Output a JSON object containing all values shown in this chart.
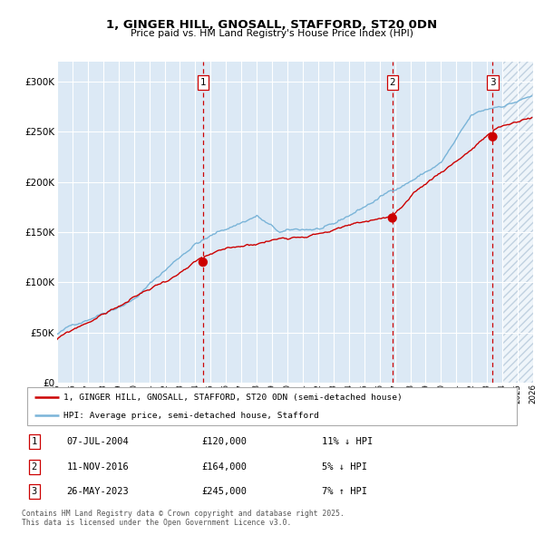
{
  "title": "1, GINGER HILL, GNOSALL, STAFFORD, ST20 0DN",
  "subtitle": "Price paid vs. HM Land Registry's House Price Index (HPI)",
  "legend_line1": "1, GINGER HILL, GNOSALL, STAFFORD, ST20 0DN (semi-detached house)",
  "legend_line2": "HPI: Average price, semi-detached house, Stafford",
  "sale1_date": "07-JUL-2004",
  "sale1_price": 120000,
  "sale1_note": "11% ↓ HPI",
  "sale2_date": "11-NOV-2016",
  "sale2_price": 164000,
  "sale2_note": "5% ↓ HPI",
  "sale3_date": "26-MAY-2023",
  "sale3_price": 245000,
  "sale3_note": "7% ↑ HPI",
  "footer": "Contains HM Land Registry data © Crown copyright and database right 2025.\nThis data is licensed under the Open Government Licence v3.0.",
  "hpi_color": "#7ab4d8",
  "price_color": "#cc0000",
  "bg_color": "#dce9f5",
  "hatch_color": "#b0c4de",
  "grid_color": "#ffffff",
  "vline_color": "#cc0000",
  "ylim": [
    0,
    320000
  ],
  "yticks": [
    0,
    50000,
    100000,
    150000,
    200000,
    250000,
    300000
  ],
  "start_year": 1995,
  "end_year": 2026,
  "sale1_yr_float": 2004.5,
  "sale2_yr_float": 2016.833,
  "sale3_yr_float": 2023.37
}
